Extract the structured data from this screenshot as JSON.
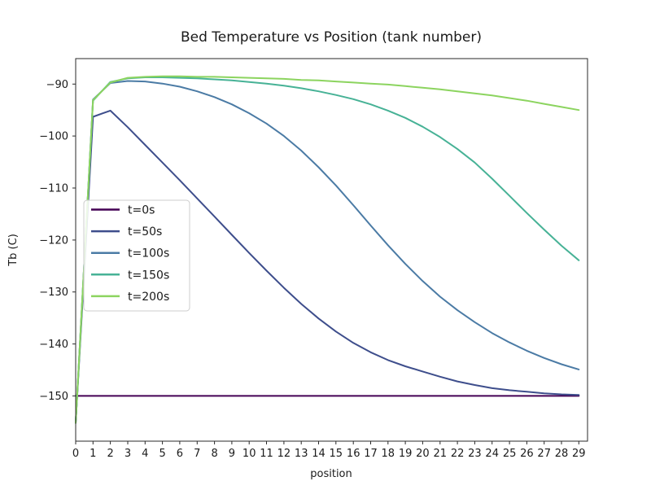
{
  "figure": {
    "background": "#ffffff"
  },
  "chart_data": {
    "type": "line",
    "title": "Bed Temperature vs Position (tank number)",
    "xlabel": "position",
    "ylabel": "Tb (C)",
    "grid": false,
    "legend_position": "center-left",
    "xlim": [
      0,
      29.5
    ],
    "ylim": [
      -158.7,
      -85.1
    ],
    "xticks": [
      0,
      1,
      2,
      3,
      4,
      5,
      6,
      7,
      8,
      9,
      10,
      11,
      12,
      13,
      14,
      15,
      16,
      17,
      18,
      19,
      20,
      21,
      22,
      23,
      24,
      25,
      26,
      27,
      28,
      29
    ],
    "yticks": [
      -90,
      -100,
      -110,
      -120,
      -130,
      -140,
      -150
    ],
    "axis_color": "#2a2a2a",
    "x": [
      0,
      1,
      2,
      3,
      4,
      5,
      6,
      7,
      8,
      9,
      10,
      11,
      12,
      13,
      14,
      15,
      16,
      17,
      18,
      19,
      20,
      21,
      22,
      23,
      24,
      25,
      26,
      27,
      28,
      29
    ],
    "series": [
      {
        "name": "t=0s",
        "color": "#440154",
        "values": [
          -150,
          -150,
          -150,
          -150,
          -150,
          -150,
          -150,
          -150,
          -150,
          -150,
          -150,
          -150,
          -150,
          -150,
          -150,
          -150,
          -150,
          -150,
          -150,
          -150,
          -150,
          -150,
          -150,
          -150,
          -150,
          -150,
          -150,
          -150,
          -150,
          -150
        ]
      },
      {
        "name": "t=50s",
        "color": "#3e4e8c",
        "values": [
          -155.2,
          -96.3,
          -95.1,
          -98.3,
          -101.7,
          -105.1,
          -108.5,
          -112.0,
          -115.5,
          -119.0,
          -122.5,
          -125.9,
          -129.2,
          -132.3,
          -135.1,
          -137.6,
          -139.8,
          -141.6,
          -143.1,
          -144.3,
          -145.3,
          -146.3,
          -147.2,
          -147.9,
          -148.5,
          -148.9,
          -149.2,
          -149.5,
          -149.7,
          -149.8
        ]
      },
      {
        "name": "t=100s",
        "color": "#4b7ba5",
        "values": [
          -155.2,
          -93.0,
          -89.8,
          -89.4,
          -89.5,
          -89.9,
          -90.5,
          -91.4,
          -92.5,
          -93.9,
          -95.6,
          -97.6,
          -100.0,
          -102.8,
          -106.0,
          -109.5,
          -113.3,
          -117.2,
          -121.0,
          -124.6,
          -127.9,
          -130.9,
          -133.5,
          -135.8,
          -137.9,
          -139.7,
          -141.3,
          -142.7,
          -143.9,
          -144.9
        ]
      },
      {
        "name": "t=150s",
        "color": "#47b296",
        "values": [
          -155.2,
          -93.2,
          -89.6,
          -88.9,
          -88.7,
          -88.7,
          -88.8,
          -88.9,
          -89.1,
          -89.3,
          -89.6,
          -89.9,
          -90.3,
          -90.8,
          -91.4,
          -92.1,
          -92.9,
          -93.9,
          -95.1,
          -96.5,
          -98.2,
          -100.2,
          -102.5,
          -105.1,
          -108.2,
          -111.5,
          -114.8,
          -118.0,
          -121.1,
          -123.9
        ]
      },
      {
        "name": "t=200s",
        "color": "#8cd45f",
        "values": [
          -155.2,
          -93.1,
          -89.7,
          -88.8,
          -88.6,
          -88.5,
          -88.5,
          -88.6,
          -88.6,
          -88.7,
          -88.8,
          -88.9,
          -89.0,
          -89.2,
          -89.3,
          -89.5,
          -89.7,
          -89.9,
          -90.1,
          -90.4,
          -90.7,
          -91.0,
          -91.4,
          -91.8,
          -92.2,
          -92.7,
          -93.2,
          -93.8,
          -94.4,
          -95.0
        ]
      }
    ]
  }
}
